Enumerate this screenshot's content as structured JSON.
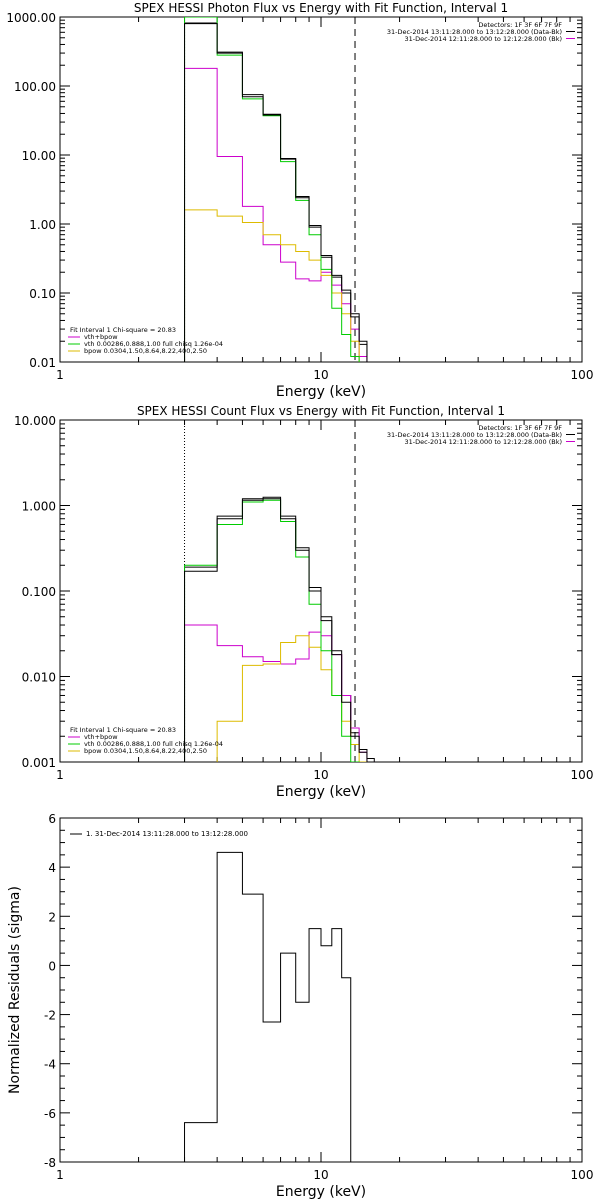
{
  "colors": {
    "total": "#000000",
    "vth_thick": "#cc00cc",
    "vth": "#00cc00",
    "bpow": "#ddbb00",
    "data": "#000000",
    "background": "#cc00cc"
  },
  "chart_data": [
    {
      "type": "line",
      "step": true,
      "title": "SPEX HESSI Photon Flux vs Energy with Fit Function, Interval 1",
      "xlabel": "Energy (keV)",
      "ylabel": "",
      "xscale": "log",
      "yscale": "log",
      "xlim": [
        1,
        100
      ],
      "ylim": [
        0.01,
        1000
      ],
      "xticks": [
        {
          "v": 1,
          "label": "1"
        },
        {
          "v": 10,
          "label": "10"
        },
        {
          "v": 100,
          "label": "100"
        }
      ],
      "yticks": [
        {
          "v": 0.01,
          "label": "0.01"
        },
        {
          "v": 0.1,
          "label": "0.10"
        },
        {
          "v": 1,
          "label": "1.00"
        },
        {
          "v": 10,
          "label": "10.00"
        },
        {
          "v": 100,
          "label": "100.00"
        },
        {
          "v": 1000,
          "label": "1000.00"
        }
      ],
      "vlines": [
        {
          "x": 3,
          "style": "dotted"
        },
        {
          "x": 13.5,
          "style": "dashed"
        }
      ],
      "info_right": [
        "Detectors: 1F 3F 6F 7F 9F",
        "31-Dec-2014 13:11:28.000 to 13:12:28.000 (Data-Bk)",
        "31-Dec-2014 12:11:28.000 to 12:12:28.000 (Bk)"
      ],
      "info_left": [
        "Fit Interval 1    Chi-square = 20.83",
        "vth+bpow",
        "vth 0.00286,0.888,1.00   full chisq 1.26e-04",
        "bpow 0.0304,1.50,8.64,8.22,400,2.50"
      ],
      "edges": [
        3,
        4,
        5,
        6,
        7,
        8,
        9,
        10,
        11,
        12,
        13,
        14,
        15
      ],
      "series": [
        {
          "role": "total",
          "values": [
            800,
            300,
            70,
            38,
            8.7,
            2.4,
            0.9,
            0.35,
            0.18,
            0.11,
            0.045,
            0.02
          ]
        },
        {
          "role": "data",
          "values": [
            820,
            310,
            75,
            39,
            8.9,
            2.5,
            0.95,
            0.33,
            0.17,
            0.1,
            0.05,
            0.018
          ]
        },
        {
          "role": "vth",
          "values": [
            1000,
            280,
            65,
            37,
            8,
            2.2,
            0.7,
            0.22,
            0.06,
            0.025,
            0.012,
            0.009
          ]
        },
        {
          "role": "vth_thick",
          "values": [
            180,
            9.5,
            1.8,
            0.5,
            0.28,
            0.16,
            0.15,
            0.2,
            0.13,
            0.07,
            0.03,
            0.012
          ]
        },
        {
          "role": "bpow",
          "values": [
            1.6,
            1.3,
            1.05,
            0.7,
            0.5,
            0.4,
            0.3,
            0.18,
            0.1,
            0.05,
            0.02,
            0.009
          ]
        }
      ]
    },
    {
      "type": "line",
      "step": true,
      "title": "SPEX HESSI Count Flux vs Energy with Fit Function, Interval 1",
      "xlabel": "Energy (keV)",
      "ylabel": "",
      "xscale": "log",
      "yscale": "log",
      "xlim": [
        1,
        100
      ],
      "ylim": [
        0.001,
        10
      ],
      "xticks": [
        {
          "v": 1,
          "label": "1"
        },
        {
          "v": 10,
          "label": "10"
        },
        {
          "v": 100,
          "label": "100"
        }
      ],
      "yticks": [
        {
          "v": 0.001,
          "label": "0.001"
        },
        {
          "v": 0.01,
          "label": "0.010"
        },
        {
          "v": 0.1,
          "label": "0.100"
        },
        {
          "v": 1,
          "label": "1.000"
        },
        {
          "v": 10,
          "label": "10.000"
        }
      ],
      "vlines": [
        {
          "x": 3,
          "style": "dotted"
        },
        {
          "x": 13.5,
          "style": "dashed"
        }
      ],
      "info_right": [
        "Detectors: 1F 3F 6F 7F 9F",
        "31-Dec-2014 13:11:28.000 to 13:12:28.000 (Data-Bk)",
        "31-Dec-2014 12:11:28.000 to 12:12:28.000 (Bk)"
      ],
      "info_left": [
        "Fit Interval 1    Chi-square = 20.83",
        "vth+bpow",
        "vth 0.00286,0.888,1.00   full chisq 1.26e-04",
        "bpow 0.0304,1.50,8.64,8.22,400,2.50"
      ],
      "edges": [
        3,
        4,
        5,
        6,
        7,
        8,
        9,
        10,
        11,
        12,
        13,
        14,
        15,
        16
      ],
      "series": [
        {
          "role": "total",
          "values": [
            0.17,
            0.7,
            1.15,
            1.2,
            0.7,
            0.3,
            0.1,
            0.045,
            0.018,
            0.005,
            0.002,
            0.0013,
            0.001
          ]
        },
        {
          "role": "data",
          "values": [
            0.19,
            0.75,
            1.2,
            1.25,
            0.75,
            0.32,
            0.11,
            0.05,
            0.02,
            0.006,
            0.0022,
            0.0014,
            0.0011
          ]
        },
        {
          "role": "vth",
          "values": [
            0.2,
            0.6,
            1.1,
            1.15,
            0.65,
            0.25,
            0.07,
            0.02,
            0.006,
            0.002,
            0.001,
            0.0009,
            0.0008
          ]
        },
        {
          "role": "vth_thick",
          "values": [
            0.04,
            0.023,
            0.017,
            0.015,
            0.014,
            0.016,
            0.033,
            0.03,
            0.018,
            0.006,
            0.0025,
            0.0013,
            0.001
          ]
        },
        {
          "role": "bpow",
          "values": [
            0.0009,
            0.003,
            0.0135,
            0.014,
            0.025,
            0.03,
            0.022,
            0.012,
            0.006,
            0.003,
            0.0016,
            0.001,
            0.0009
          ]
        }
      ]
    },
    {
      "type": "line",
      "step": true,
      "title": "",
      "xlabel": "Energy (keV)",
      "ylabel": "Normalized Residuals (sigma)",
      "xscale": "log",
      "yscale": "linear",
      "xlim": [
        1,
        100
      ],
      "ylim": [
        -8,
        6
      ],
      "xticks": [
        {
          "v": 1,
          "label": "1"
        },
        {
          "v": 10,
          "label": "10"
        },
        {
          "v": 100,
          "label": "100"
        }
      ],
      "yticks": [
        {
          "v": -8,
          "label": "-8"
        },
        {
          "v": -6,
          "label": "-6"
        },
        {
          "v": -4,
          "label": "-4"
        },
        {
          "v": -2,
          "label": "-2"
        },
        {
          "v": 0,
          "label": "0"
        },
        {
          "v": 2,
          "label": "2"
        },
        {
          "v": 4,
          "label": "4"
        },
        {
          "v": 6,
          "label": "6"
        }
      ],
      "legend": "1. 31-Dec-2014 13:11:28.000 to 13:12:28.000",
      "edges": [
        3,
        4,
        5,
        6,
        7,
        8,
        9,
        10,
        11,
        12,
        13,
        14
      ],
      "series": [
        {
          "role": "data",
          "values": [
            -6.4,
            4.6,
            2.9,
            -2.3,
            0.5,
            -1.5,
            1.5,
            0.8,
            1.5,
            -0.5,
            -8.0
          ]
        }
      ]
    }
  ]
}
